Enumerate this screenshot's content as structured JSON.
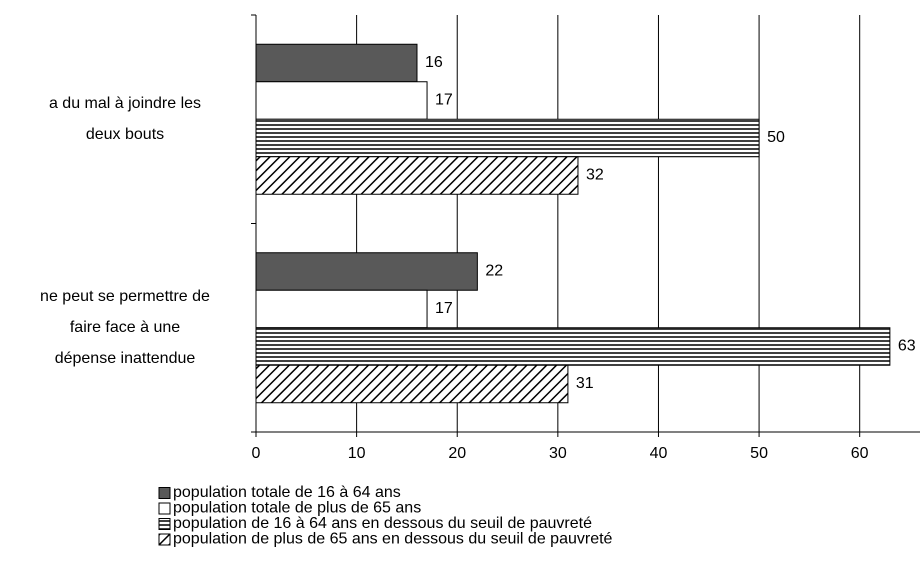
{
  "chart_data": {
    "type": "hbar",
    "categories": [
      [
        "a du mal à joindre les",
        "deux bouts"
      ],
      [
        "ne peut se permettre de",
        "faire face à une",
        "dépense inattendue"
      ]
    ],
    "series": [
      {
        "name": "population totale de 16 à 64 ans",
        "color": "#595959",
        "pattern": "solid",
        "values": [
          16,
          22
        ]
      },
      {
        "name": "population totale de plus de 65 ans",
        "color": "#ffffff",
        "pattern": "solid",
        "values": [
          17,
          17
        ]
      },
      {
        "name": "population de 16 à 64 ans en dessous du seuil de pauvreté",
        "color": "#ffffff",
        "pattern": "horizontal",
        "values": [
          50,
          63
        ]
      },
      {
        "name": "population de plus de 65 ans en dessous du seuil de pauvreté",
        "color": "#ffffff",
        "pattern": "diagonal",
        "values": [
          32,
          31
        ]
      }
    ],
    "xlim": [
      0,
      65
    ],
    "xticks": [
      0,
      10,
      20,
      30,
      40,
      50,
      60
    ],
    "grid": true,
    "legend": "bottom"
  }
}
